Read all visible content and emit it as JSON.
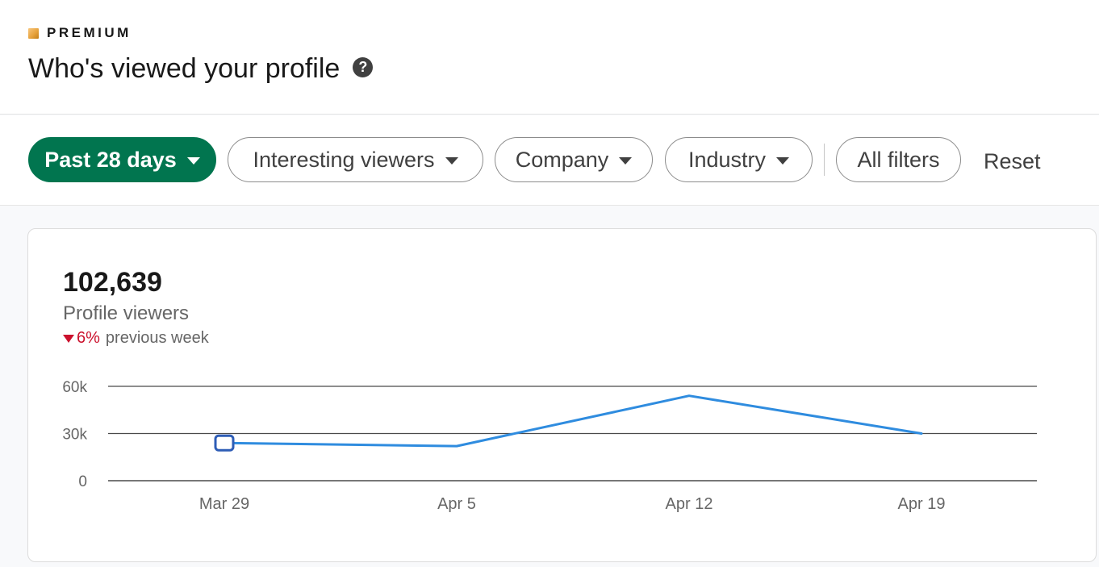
{
  "header": {
    "brand": "PREMIUM",
    "title": "Who's viewed your profile",
    "help_icon": "?"
  },
  "filters": {
    "date_range": "Past 28 days",
    "interesting_viewers": "Interesting viewers",
    "company": "Company",
    "industry": "Industry",
    "all_filters": "All filters",
    "reset": "Reset"
  },
  "stats": {
    "count": "102,639",
    "label": "Profile viewers",
    "change_pct": "6%",
    "change_label": "previous week",
    "change_direction": "down"
  },
  "colors": {
    "accent_green": "#01754f",
    "line": "#2f8cdf",
    "negative": "#cb112d"
  },
  "chart_data": {
    "type": "line",
    "categories": [
      "Mar 29",
      "Apr 5",
      "Apr 12",
      "Apr 19"
    ],
    "series": [
      {
        "values": [
          24000,
          22000,
          54000,
          30000
        ]
      }
    ],
    "yticks": [
      "0",
      "30k",
      "60k"
    ],
    "ylim": [
      0,
      60000
    ],
    "highlighted_index": 0,
    "grid": true
  }
}
